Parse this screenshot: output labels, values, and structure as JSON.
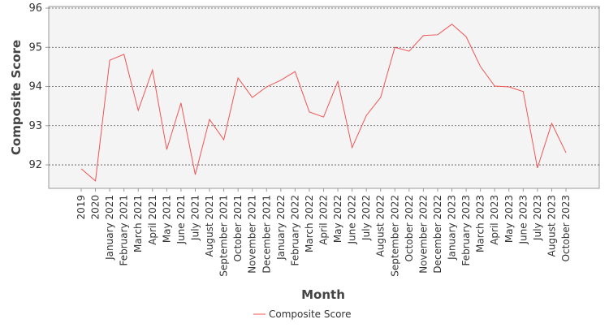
{
  "chart_data": {
    "type": "line",
    "x_label": "Month",
    "y_label": "Composite Score",
    "categories": [
      "2019",
      "2020",
      "January 2021",
      "February 2021",
      "March 2021",
      "April 2021",
      "May 2021",
      "June 2021",
      "July 2021",
      "August 2021",
      "September 2021",
      "October 2021",
      "November 2021",
      "December 2021",
      "January 2022",
      "February 2022",
      "March 2022",
      "April 2022",
      "May 2022",
      "June 2022",
      "July 2022",
      "August 2022",
      "September 2022",
      "October 2022",
      "November 2022",
      "December 2022",
      "January 2023",
      "February 2023",
      "March 2023",
      "April 2023",
      "May 2023",
      "June 2023",
      "July 2023",
      "August 2023",
      "October 2023"
    ],
    "series": [
      {
        "name": "Composite Score",
        "color": "#f05555",
        "values": [
          91.9,
          91.59,
          94.67,
          94.82,
          93.39,
          94.42,
          92.39,
          93.58,
          91.75,
          93.16,
          92.64,
          94.22,
          93.72,
          93.99,
          94.16,
          94.38,
          93.35,
          93.22,
          94.13,
          92.44,
          93.26,
          93.72,
          95.0,
          94.9,
          95.3,
          95.32,
          95.59,
          95.27,
          94.51,
          94.01,
          93.99,
          93.87,
          91.92,
          93.06,
          92.31
        ]
      }
    ],
    "ylim": [
      91.4,
      96
    ],
    "yticks": [
      92,
      93,
      94,
      95,
      96
    ],
    "grid": true,
    "legend": "bottom"
  }
}
